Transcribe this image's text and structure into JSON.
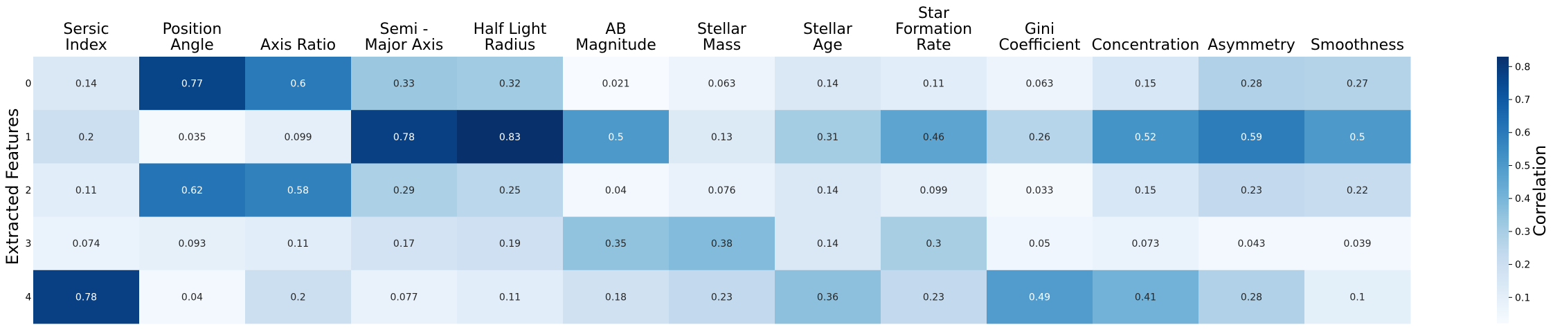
{
  "chart_data": {
    "type": "heatmap",
    "title": "",
    "xlabel": "",
    "ylabel": "Extracted Features",
    "columns": [
      [
        "Sersic",
        "Index"
      ],
      [
        "Position",
        "Angle"
      ],
      [
        "Axis Ratio"
      ],
      [
        "Semi -",
        "Major Axis"
      ],
      [
        "Half Light",
        "Radius"
      ],
      [
        "AB",
        "Magnitude"
      ],
      [
        "Stellar",
        "Mass"
      ],
      [
        "Stellar",
        "Age"
      ],
      [
        "Star",
        "Formation",
        "Rate"
      ],
      [
        "Gini",
        "Coefficient"
      ],
      [
        "Concentration"
      ],
      [
        "Asymmetry"
      ],
      [
        "Smoothness"
      ]
    ],
    "rows": [
      "0",
      "1",
      "2",
      "3",
      "4"
    ],
    "values": [
      [
        0.14,
        0.77,
        0.6,
        0.33,
        0.32,
        0.021,
        0.063,
        0.14,
        0.11,
        0.063,
        0.15,
        0.28,
        0.27
      ],
      [
        0.2,
        0.035,
        0.099,
        0.78,
        0.83,
        0.5,
        0.13,
        0.31,
        0.46,
        0.26,
        0.52,
        0.59,
        0.5
      ],
      [
        0.11,
        0.62,
        0.58,
        0.29,
        0.25,
        0.04,
        0.076,
        0.14,
        0.099,
        0.033,
        0.15,
        0.23,
        0.22
      ],
      [
        0.074,
        0.093,
        0.11,
        0.17,
        0.19,
        0.35,
        0.38,
        0.14,
        0.3,
        0.05,
        0.073,
        0.043,
        0.039
      ],
      [
        0.78,
        0.04,
        0.2,
        0.077,
        0.11,
        0.18,
        0.23,
        0.36,
        0.23,
        0.49,
        0.41,
        0.28,
        0.1
      ]
    ],
    "colormap": "Blues",
    "vmin": 0.021,
    "vmax": 0.83,
    "colorbar": {
      "label": "Correlation",
      "ticks": [
        "0.1",
        "0.2",
        "0.3",
        "0.4",
        "0.5",
        "0.6",
        "0.7",
        "0.8"
      ]
    }
  }
}
